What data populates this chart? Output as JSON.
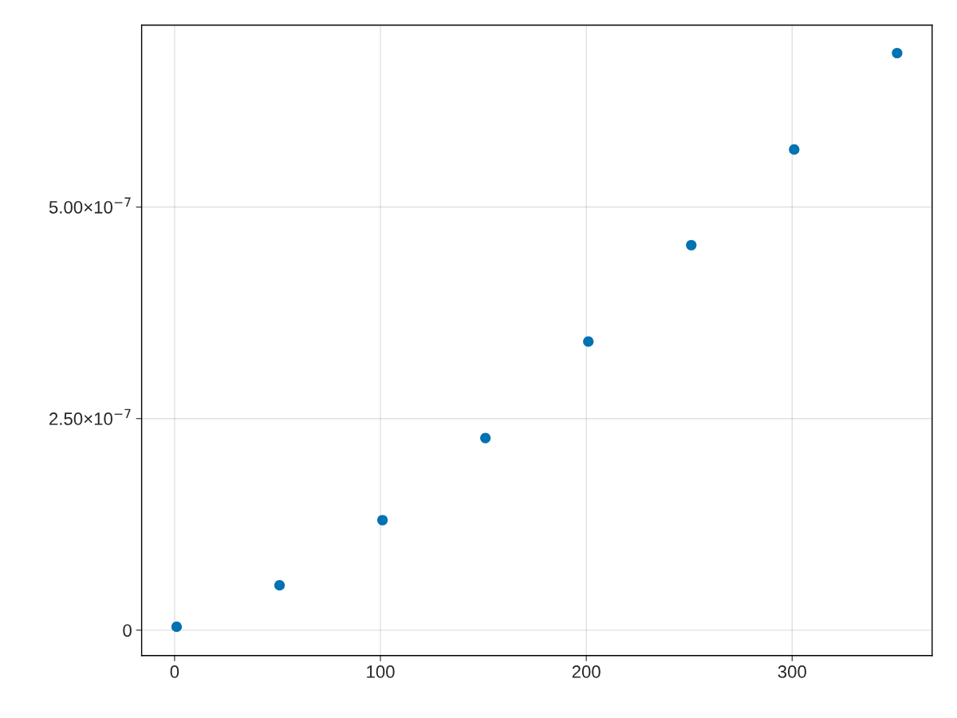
{
  "chart_data": {
    "type": "scatter",
    "x": [
      1,
      51,
      101,
      151,
      201,
      251,
      301,
      351
    ],
    "series": [
      {
        "color": "#0072b2",
        "values": [
          4e-09,
          5.3e-08,
          1.3e-07,
          2.27e-07,
          3.41e-07,
          4.55e-07,
          5.68e-07,
          6.82e-07
        ]
      }
    ],
    "xlim": [
      -16,
      368
    ],
    "xticks": [
      0,
      100,
      200,
      300
    ],
    "ylim": [
      -3e-08,
      7.15e-07
    ],
    "yticks": [
      {
        "value": 0,
        "label": "0"
      },
      {
        "value": 2.5e-07,
        "label": "2.50×10$^{−7}$"
      },
      {
        "value": 5e-07,
        "label": "5.00×10$^{−7}$"
      }
    ],
    "grid": true,
    "marker": "circle"
  }
}
